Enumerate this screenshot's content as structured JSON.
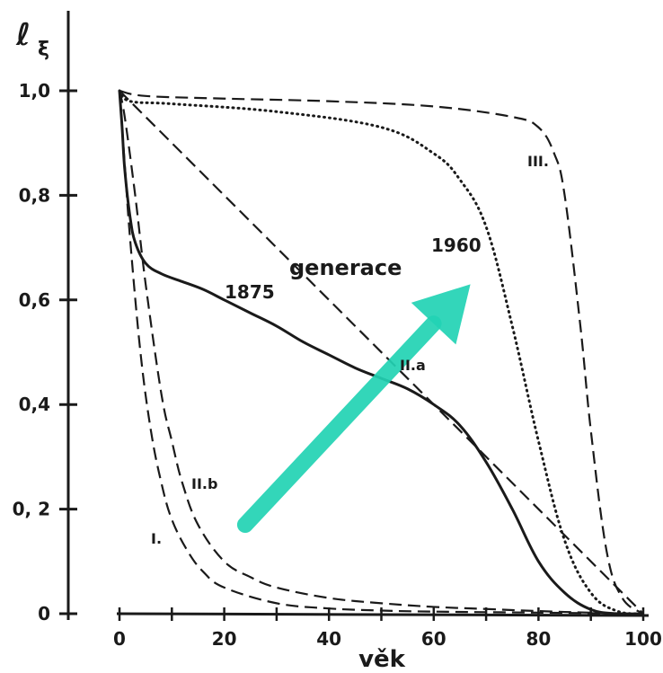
{
  "chart_data": {
    "type": "line",
    "title": "",
    "xlabel": "věk",
    "ylabel": "ℓ",
    "ylabel_sub": "ξ",
    "xlim": [
      0,
      100
    ],
    "ylim": [
      0,
      1.0
    ],
    "x_ticks": [
      0,
      20,
      40,
      60,
      80,
      100
    ],
    "x_tick_labels": [
      "0",
      "20",
      "40",
      "60",
      "80",
      "100"
    ],
    "y_ticks": [
      0,
      0.2,
      0.4,
      0.6,
      0.8,
      1.0
    ],
    "y_tick_labels": [
      "0",
      "0, 2",
      "0,4",
      "0,6",
      "0,8",
      "1,0"
    ],
    "grid": false,
    "series": [
      {
        "name": "III.",
        "style": "dashed",
        "x": [
          0,
          5,
          20,
          40,
          60,
          75,
          80,
          83,
          85,
          88,
          90,
          93,
          96,
          100
        ],
        "y": [
          1.0,
          0.99,
          0.985,
          0.98,
          0.97,
          0.95,
          0.93,
          0.88,
          0.8,
          0.55,
          0.35,
          0.12,
          0.03,
          0.0
        ]
      },
      {
        "name": "1960",
        "style": "dotted",
        "x": [
          0,
          2,
          10,
          30,
          50,
          60,
          65,
          70,
          75,
          80,
          85,
          90,
          95,
          100
        ],
        "y": [
          1.0,
          0.98,
          0.975,
          0.96,
          0.93,
          0.88,
          0.83,
          0.74,
          0.55,
          0.33,
          0.14,
          0.04,
          0.005,
          0.0
        ]
      },
      {
        "name": "II.a",
        "style": "dashed",
        "x": [
          0,
          100
        ],
        "y": [
          1.0,
          0.0
        ]
      },
      {
        "name": "1875",
        "style": "solid",
        "x": [
          0,
          0.5,
          1,
          2,
          3,
          5,
          8,
          12,
          16,
          20,
          25,
          30,
          35,
          40,
          45,
          50,
          55,
          60,
          65,
          70,
          75,
          80,
          85,
          90,
          95,
          100
        ],
        "y": [
          1.0,
          0.93,
          0.85,
          0.76,
          0.71,
          0.67,
          0.65,
          0.635,
          0.62,
          0.6,
          0.575,
          0.55,
          0.52,
          0.495,
          0.47,
          0.45,
          0.43,
          0.4,
          0.36,
          0.29,
          0.2,
          0.1,
          0.04,
          0.008,
          0.0,
          0.0
        ]
      },
      {
        "name": "II.b",
        "style": "dashed",
        "x": [
          0,
          1,
          3,
          5,
          8,
          10,
          12,
          15,
          20,
          25,
          30,
          40,
          50,
          60,
          70,
          80,
          90,
          100
        ],
        "y": [
          1.0,
          0.95,
          0.8,
          0.63,
          0.42,
          0.33,
          0.25,
          0.17,
          0.1,
          0.07,
          0.05,
          0.03,
          0.02,
          0.013,
          0.009,
          0.005,
          0.002,
          0.0
        ]
      },
      {
        "name": "I.",
        "style": "dashed",
        "x": [
          0,
          1,
          2,
          4,
          6,
          8,
          10,
          13,
          16,
          20,
          30,
          40,
          50,
          60,
          80,
          100
        ],
        "y": [
          1.0,
          0.86,
          0.72,
          0.5,
          0.35,
          0.25,
          0.18,
          0.12,
          0.08,
          0.05,
          0.02,
          0.01,
          0.006,
          0.004,
          0.002,
          0.0
        ]
      }
    ],
    "labels": {
      "III": "III.",
      "IIa": "II.a",
      "IIb": "II.b",
      "I": "I.",
      "y1875": "1875",
      "y1960": "1960",
      "generace": "generace"
    },
    "arrow": {
      "color": "#22d3b4",
      "from": [
        24,
        0.17
      ],
      "to": [
        67,
        0.63
      ]
    }
  }
}
